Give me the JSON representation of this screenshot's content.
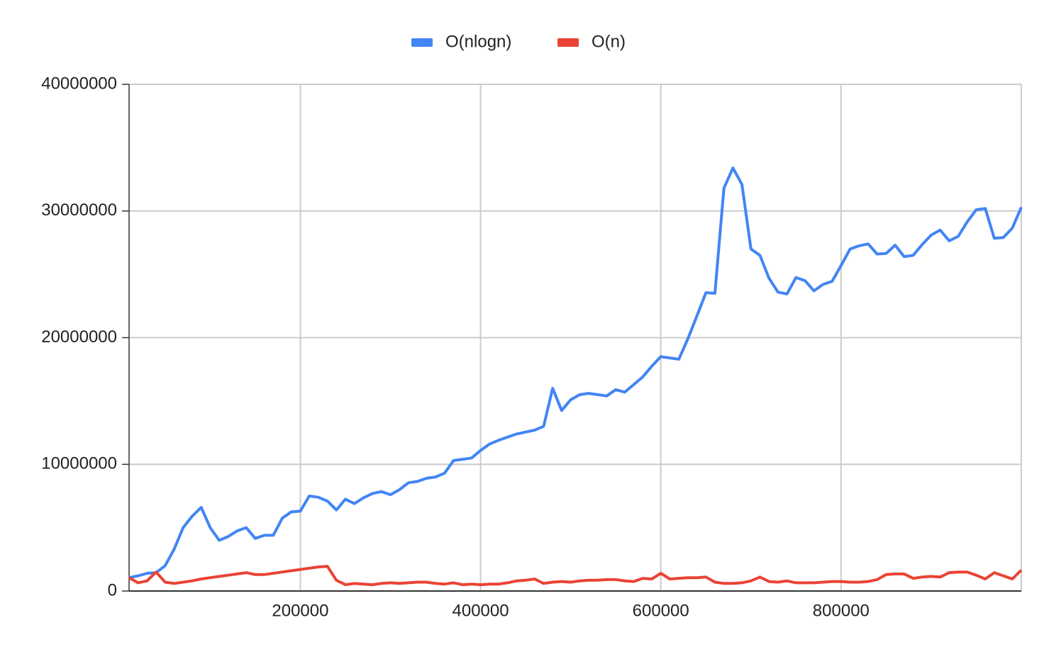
{
  "chart_data": {
    "type": "line",
    "x": [
      10000,
      20000,
      30000,
      40000,
      50000,
      60000,
      70000,
      80000,
      90000,
      100000,
      110000,
      120000,
      130000,
      140000,
      150000,
      160000,
      170000,
      180000,
      190000,
      200000,
      210000,
      220000,
      230000,
      240000,
      250000,
      260000,
      270000,
      280000,
      290000,
      300000,
      310000,
      320000,
      330000,
      340000,
      350000,
      360000,
      370000,
      380000,
      390000,
      400000,
      410000,
      420000,
      430000,
      440000,
      450000,
      460000,
      470000,
      480000,
      490000,
      500000,
      510000,
      520000,
      530000,
      540000,
      550000,
      560000,
      570000,
      580000,
      590000,
      600000,
      610000,
      620000,
      630000,
      640000,
      650000,
      660000,
      670000,
      680000,
      690000,
      700000,
      710000,
      720000,
      730000,
      740000,
      750000,
      760000,
      770000,
      780000,
      790000,
      800000,
      810000,
      820000,
      830000,
      840000,
      850000,
      860000,
      870000,
      880000,
      890000,
      900000,
      910000,
      920000,
      930000,
      940000,
      950000,
      960000,
      970000,
      980000,
      990000,
      1000000
    ],
    "series": [
      {
        "name": "O(nlogn)",
        "color": "#4285f4",
        "values": [
          1050000,
          1200000,
          1400000,
          1450000,
          2000000,
          3300000,
          5000000,
          5900000,
          6600000,
          5000000,
          4000000,
          4300000,
          4750000,
          5000000,
          4150000,
          4400000,
          4400000,
          5750000,
          6250000,
          6300000,
          7500000,
          7400000,
          7100000,
          6400000,
          7250000,
          6900000,
          7350000,
          7700000,
          7850000,
          7600000,
          8000000,
          8550000,
          8650000,
          8900000,
          9000000,
          9300000,
          10300000,
          10400000,
          10500000,
          11100000,
          11600000,
          11900000,
          12150000,
          12400000,
          12550000,
          12700000,
          13000000,
          16000000,
          14250000,
          15100000,
          15500000,
          15600000,
          15500000,
          15400000,
          15900000,
          15700000,
          16300000,
          16900000,
          17750000,
          18500000,
          18400000,
          18300000,
          19900000,
          21700000,
          23550000,
          23500000,
          31800000,
          33400000,
          32100000,
          27000000,
          26500000,
          24700000,
          23600000,
          23450000,
          24750000,
          24500000,
          23700000,
          24200000,
          24450000,
          25700000,
          27000000,
          27250000,
          27400000,
          26600000,
          26650000,
          27300000,
          26400000,
          26500000,
          27350000,
          28100000,
          28500000,
          27650000,
          28000000,
          29150000,
          30100000,
          30200000,
          27850000,
          27900000,
          28650000,
          30300000
        ]
      },
      {
        "name": "O(n)",
        "color": "#ea4335",
        "values": [
          1050000,
          650000,
          800000,
          1500000,
          700000,
          600000,
          700000,
          800000,
          950000,
          1050000,
          1150000,
          1250000,
          1350000,
          1450000,
          1300000,
          1300000,
          1400000,
          1500000,
          1600000,
          1700000,
          1800000,
          1900000,
          1950000,
          850000,
          500000,
          600000,
          550000,
          500000,
          600000,
          650000,
          600000,
          650000,
          700000,
          700000,
          600000,
          550000,
          650000,
          500000,
          550000,
          500000,
          550000,
          550000,
          650000,
          800000,
          850000,
          950000,
          600000,
          700000,
          750000,
          700000,
          800000,
          850000,
          850000,
          900000,
          900000,
          800000,
          750000,
          1000000,
          950000,
          1400000,
          950000,
          1000000,
          1050000,
          1050000,
          1100000,
          700000,
          600000,
          600000,
          650000,
          800000,
          1100000,
          750000,
          700000,
          800000,
          650000,
          650000,
          650000,
          700000,
          750000,
          750000,
          700000,
          700000,
          750000,
          900000,
          1300000,
          1350000,
          1350000,
          1000000,
          1100000,
          1150000,
          1100000,
          1450000,
          1500000,
          1500000,
          1250000,
          950000,
          1450000,
          1200000,
          950000,
          1650000
        ]
      }
    ],
    "xlim": [
      10000,
      1000000
    ],
    "xticks": [
      200000,
      400000,
      600000,
      800000
    ],
    "ylim": [
      0,
      40000000
    ],
    "yticks": [
      0,
      10000000,
      20000000,
      30000000,
      40000000
    ],
    "grid": true,
    "legend": "top"
  }
}
